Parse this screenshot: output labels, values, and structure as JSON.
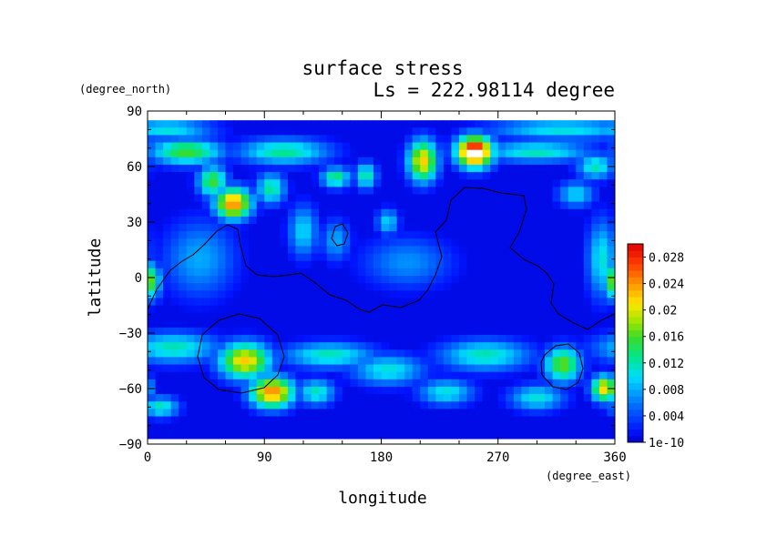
{
  "chart_data": {
    "type": "heatmap",
    "title": "surface stress",
    "subtitle": "Ls = 222.98114 degree",
    "xlabel": "longitude",
    "ylabel": "latitude",
    "xunit": "(degree_east)",
    "yunit": "(degree_north)",
    "xlim": [
      0,
      360
    ],
    "ylim": [
      -90,
      90
    ],
    "xticks": [
      0,
      90,
      180,
      270,
      360
    ],
    "xtick_labels": [
      "0",
      "90",
      "180",
      "270",
      "360"
    ],
    "yticks": [
      90,
      60,
      30,
      0,
      -30,
      -60,
      -90
    ],
    "ytick_labels": [
      "90",
      "60",
      "30",
      "0",
      "−30",
      "−60",
      "−90"
    ],
    "grid": false,
    "colorbar": {
      "min": 0,
      "max": 0.03,
      "ticks": [
        0.028,
        0.024,
        0.02,
        0.016,
        0.012,
        0.008,
        0.004,
        1e-10
      ],
      "tick_labels": [
        "0.028",
        "0.024",
        "0.02",
        "0.016",
        "0.012",
        "0.008",
        "0.004",
        "1e-10"
      ]
    },
    "data_lat_range": [
      -85,
      85
    ],
    "background_value": 0.001,
    "features": [
      {
        "lon": 252,
        "lat": 68,
        "value": 0.032,
        "sx": 10,
        "sy": 6
      },
      {
        "lon": 66,
        "lat": 40,
        "value": 0.025,
        "sx": 10,
        "sy": 6
      },
      {
        "lon": 96,
        "lat": -62,
        "value": 0.025,
        "sx": 12,
        "sy": 6
      },
      {
        "lon": 75,
        "lat": -45,
        "value": 0.022,
        "sx": 14,
        "sy": 7
      },
      {
        "lon": 212,
        "lat": 63,
        "value": 0.022,
        "sx": 8,
        "sy": 8
      },
      {
        "lon": 320,
        "lat": -47,
        "value": 0.017,
        "sx": 10,
        "sy": 7
      },
      {
        "lon": 352,
        "lat": -60,
        "value": 0.022,
        "sx": 7,
        "sy": 5
      },
      {
        "lon": 30,
        "lat": 68,
        "value": 0.016,
        "sx": 20,
        "sy": 5
      },
      {
        "lon": 50,
        "lat": 52,
        "value": 0.016,
        "sx": 8,
        "sy": 6
      },
      {
        "lon": 105,
        "lat": 68,
        "value": 0.013,
        "sx": 25,
        "sy": 5
      },
      {
        "lon": 95,
        "lat": 48,
        "value": 0.013,
        "sx": 8,
        "sy": 6
      },
      {
        "lon": 145,
        "lat": 54,
        "value": 0.014,
        "sx": 8,
        "sy": 4
      },
      {
        "lon": 168,
        "lat": 55,
        "value": 0.013,
        "sx": 6,
        "sy": 5
      },
      {
        "lon": 0,
        "lat": -2,
        "value": 0.018,
        "sx": 7,
        "sy": 7
      },
      {
        "lon": 360,
        "lat": -2,
        "value": 0.018,
        "sx": 7,
        "sy": 7
      },
      {
        "lon": 15,
        "lat": 80,
        "value": 0.011,
        "sx": 25,
        "sy": 4
      },
      {
        "lon": 320,
        "lat": 80,
        "value": 0.011,
        "sx": 40,
        "sy": 4
      },
      {
        "lon": 300,
        "lat": 68,
        "value": 0.012,
        "sx": 30,
        "sy": 4
      },
      {
        "lon": 345,
        "lat": 60,
        "value": 0.012,
        "sx": 10,
        "sy": 5
      },
      {
        "lon": 20,
        "lat": -38,
        "value": 0.012,
        "sx": 25,
        "sy": 6
      },
      {
        "lon": 140,
        "lat": -42,
        "value": 0.012,
        "sx": 25,
        "sy": 5
      },
      {
        "lon": 185,
        "lat": -50,
        "value": 0.011,
        "sx": 20,
        "sy": 6
      },
      {
        "lon": 260,
        "lat": -42,
        "value": 0.012,
        "sx": 25,
        "sy": 6
      },
      {
        "lon": 130,
        "lat": -62,
        "value": 0.012,
        "sx": 10,
        "sy": 5
      },
      {
        "lon": 230,
        "lat": -62,
        "value": 0.011,
        "sx": 15,
        "sy": 5
      },
      {
        "lon": 300,
        "lat": -65,
        "value": 0.011,
        "sx": 15,
        "sy": 5
      },
      {
        "lon": 350,
        "lat": 10,
        "value": 0.011,
        "sx": 8,
        "sy": 15
      },
      {
        "lon": 120,
        "lat": 25,
        "value": 0.01,
        "sx": 8,
        "sy": 10
      },
      {
        "lon": 185,
        "lat": 30,
        "value": 0.01,
        "sx": 6,
        "sy": 5
      },
      {
        "lon": 40,
        "lat": 10,
        "value": 0.008,
        "sx": 20,
        "sy": 15
      },
      {
        "lon": 10,
        "lat": -70,
        "value": 0.012,
        "sx": 10,
        "sy": 4
      },
      {
        "lon": 330,
        "lat": 45,
        "value": 0.01,
        "sx": 10,
        "sy": 5
      },
      {
        "lon": 200,
        "lat": 8,
        "value": 0.007,
        "sx": 25,
        "sy": 10
      },
      {
        "lon": 145,
        "lat": 20,
        "value": 0.008,
        "sx": 8,
        "sy": 8
      }
    ]
  }
}
